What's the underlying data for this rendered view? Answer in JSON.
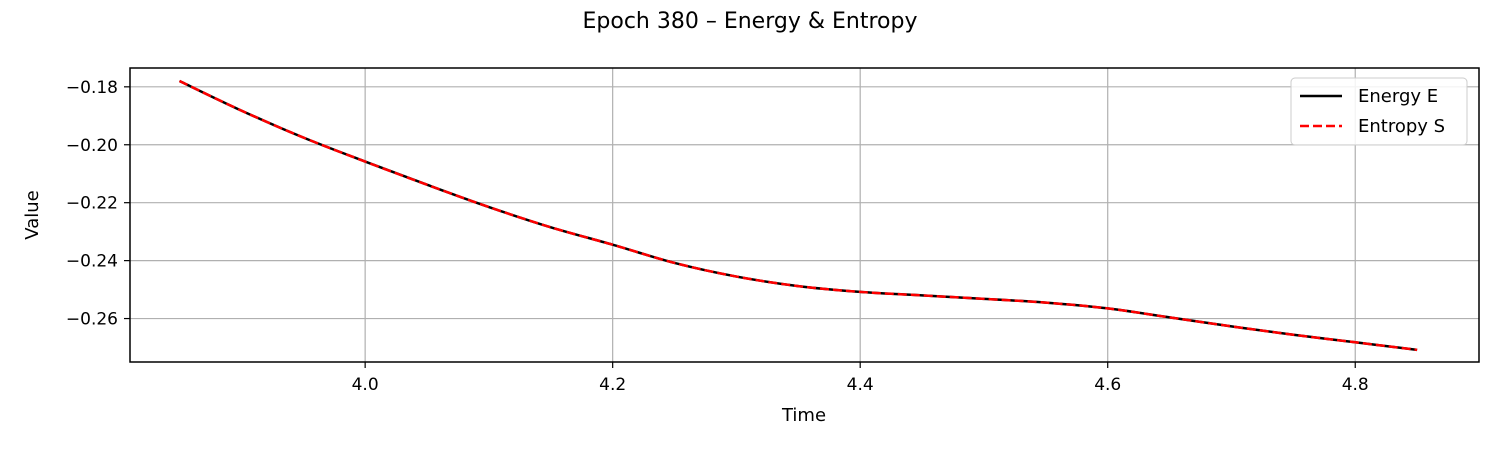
{
  "chart_data": {
    "type": "line",
    "title": "Epoch 380 – Energy & Entropy",
    "xlabel": "Time",
    "ylabel": "Value",
    "xlim": [
      3.81,
      4.9
    ],
    "ylim": [
      -0.275,
      -0.1735
    ],
    "x_ticks": [
      4.0,
      4.2,
      4.4,
      4.6,
      4.8
    ],
    "x_tick_labels": [
      "4.0",
      "4.2",
      "4.4",
      "4.6",
      "4.8"
    ],
    "y_ticks": [
      -0.18,
      -0.2,
      -0.22,
      -0.24,
      -0.26
    ],
    "y_tick_labels": [
      "−0.18",
      "−0.20",
      "−0.22",
      "−0.24",
      "−0.26"
    ],
    "grid": true,
    "legend_position": "top-right",
    "x": [
      3.85,
      3.9,
      3.95,
      4.0,
      4.05,
      4.1,
      4.15,
      4.2,
      4.25,
      4.3,
      4.35,
      4.4,
      4.45,
      4.5,
      4.55,
      4.6,
      4.65,
      4.7,
      4.75,
      4.8,
      4.85
    ],
    "series": [
      {
        "name": "Energy E",
        "color": "#000000",
        "style": "solid",
        "values": [
          -0.178,
          -0.1882,
          -0.1975,
          -0.2058,
          -0.2138,
          -0.2215,
          -0.2285,
          -0.2345,
          -0.2408,
          -0.2455,
          -0.2488,
          -0.2508,
          -0.252,
          -0.2532,
          -0.2545,
          -0.2565,
          -0.2596,
          -0.2627,
          -0.2656,
          -0.2682,
          -0.2708
        ]
      },
      {
        "name": "Entropy S",
        "color": "#ff0000",
        "style": "dashed",
        "values": [
          -0.178,
          -0.1882,
          -0.1975,
          -0.2058,
          -0.2138,
          -0.2215,
          -0.2285,
          -0.2345,
          -0.2408,
          -0.2455,
          -0.2488,
          -0.2508,
          -0.252,
          -0.2532,
          -0.2545,
          -0.2565,
          -0.2596,
          -0.2627,
          -0.2656,
          -0.2682,
          -0.2708
        ]
      }
    ]
  }
}
